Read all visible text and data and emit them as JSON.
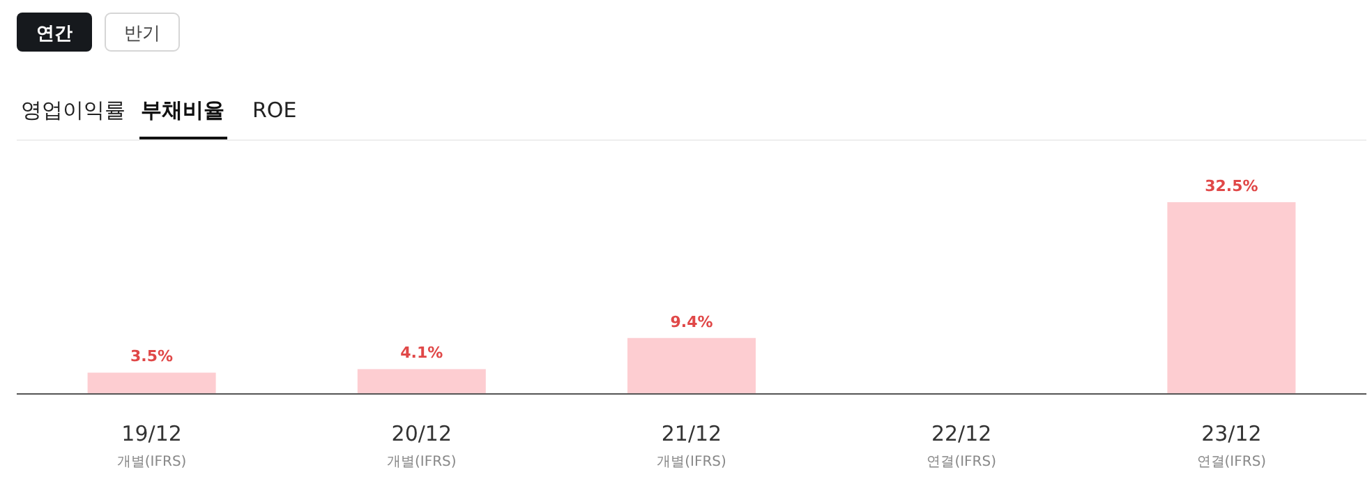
{
  "chart_data": {
    "type": "bar",
    "title": "부채비율",
    "categories": [
      "19/12\n개별(IFRS)",
      "20/12\n개별(IFRS)",
      "21/12\n개별(IFRS)",
      "22/12\n연결(IFRS)",
      "23/12\n연결(IFRS)"
    ],
    "values": [
      3.5,
      4.1,
      9.4,
      null,
      32.5
    ],
    "value_labels": [
      "3.5%",
      "4.1%",
      "9.4%",
      null,
      "32.5%"
    ],
    "color": "#fdcdd1",
    "annotations": [
      "연간",
      "반기",
      "영업이익률",
      "ROE"
    ]
  }
}
